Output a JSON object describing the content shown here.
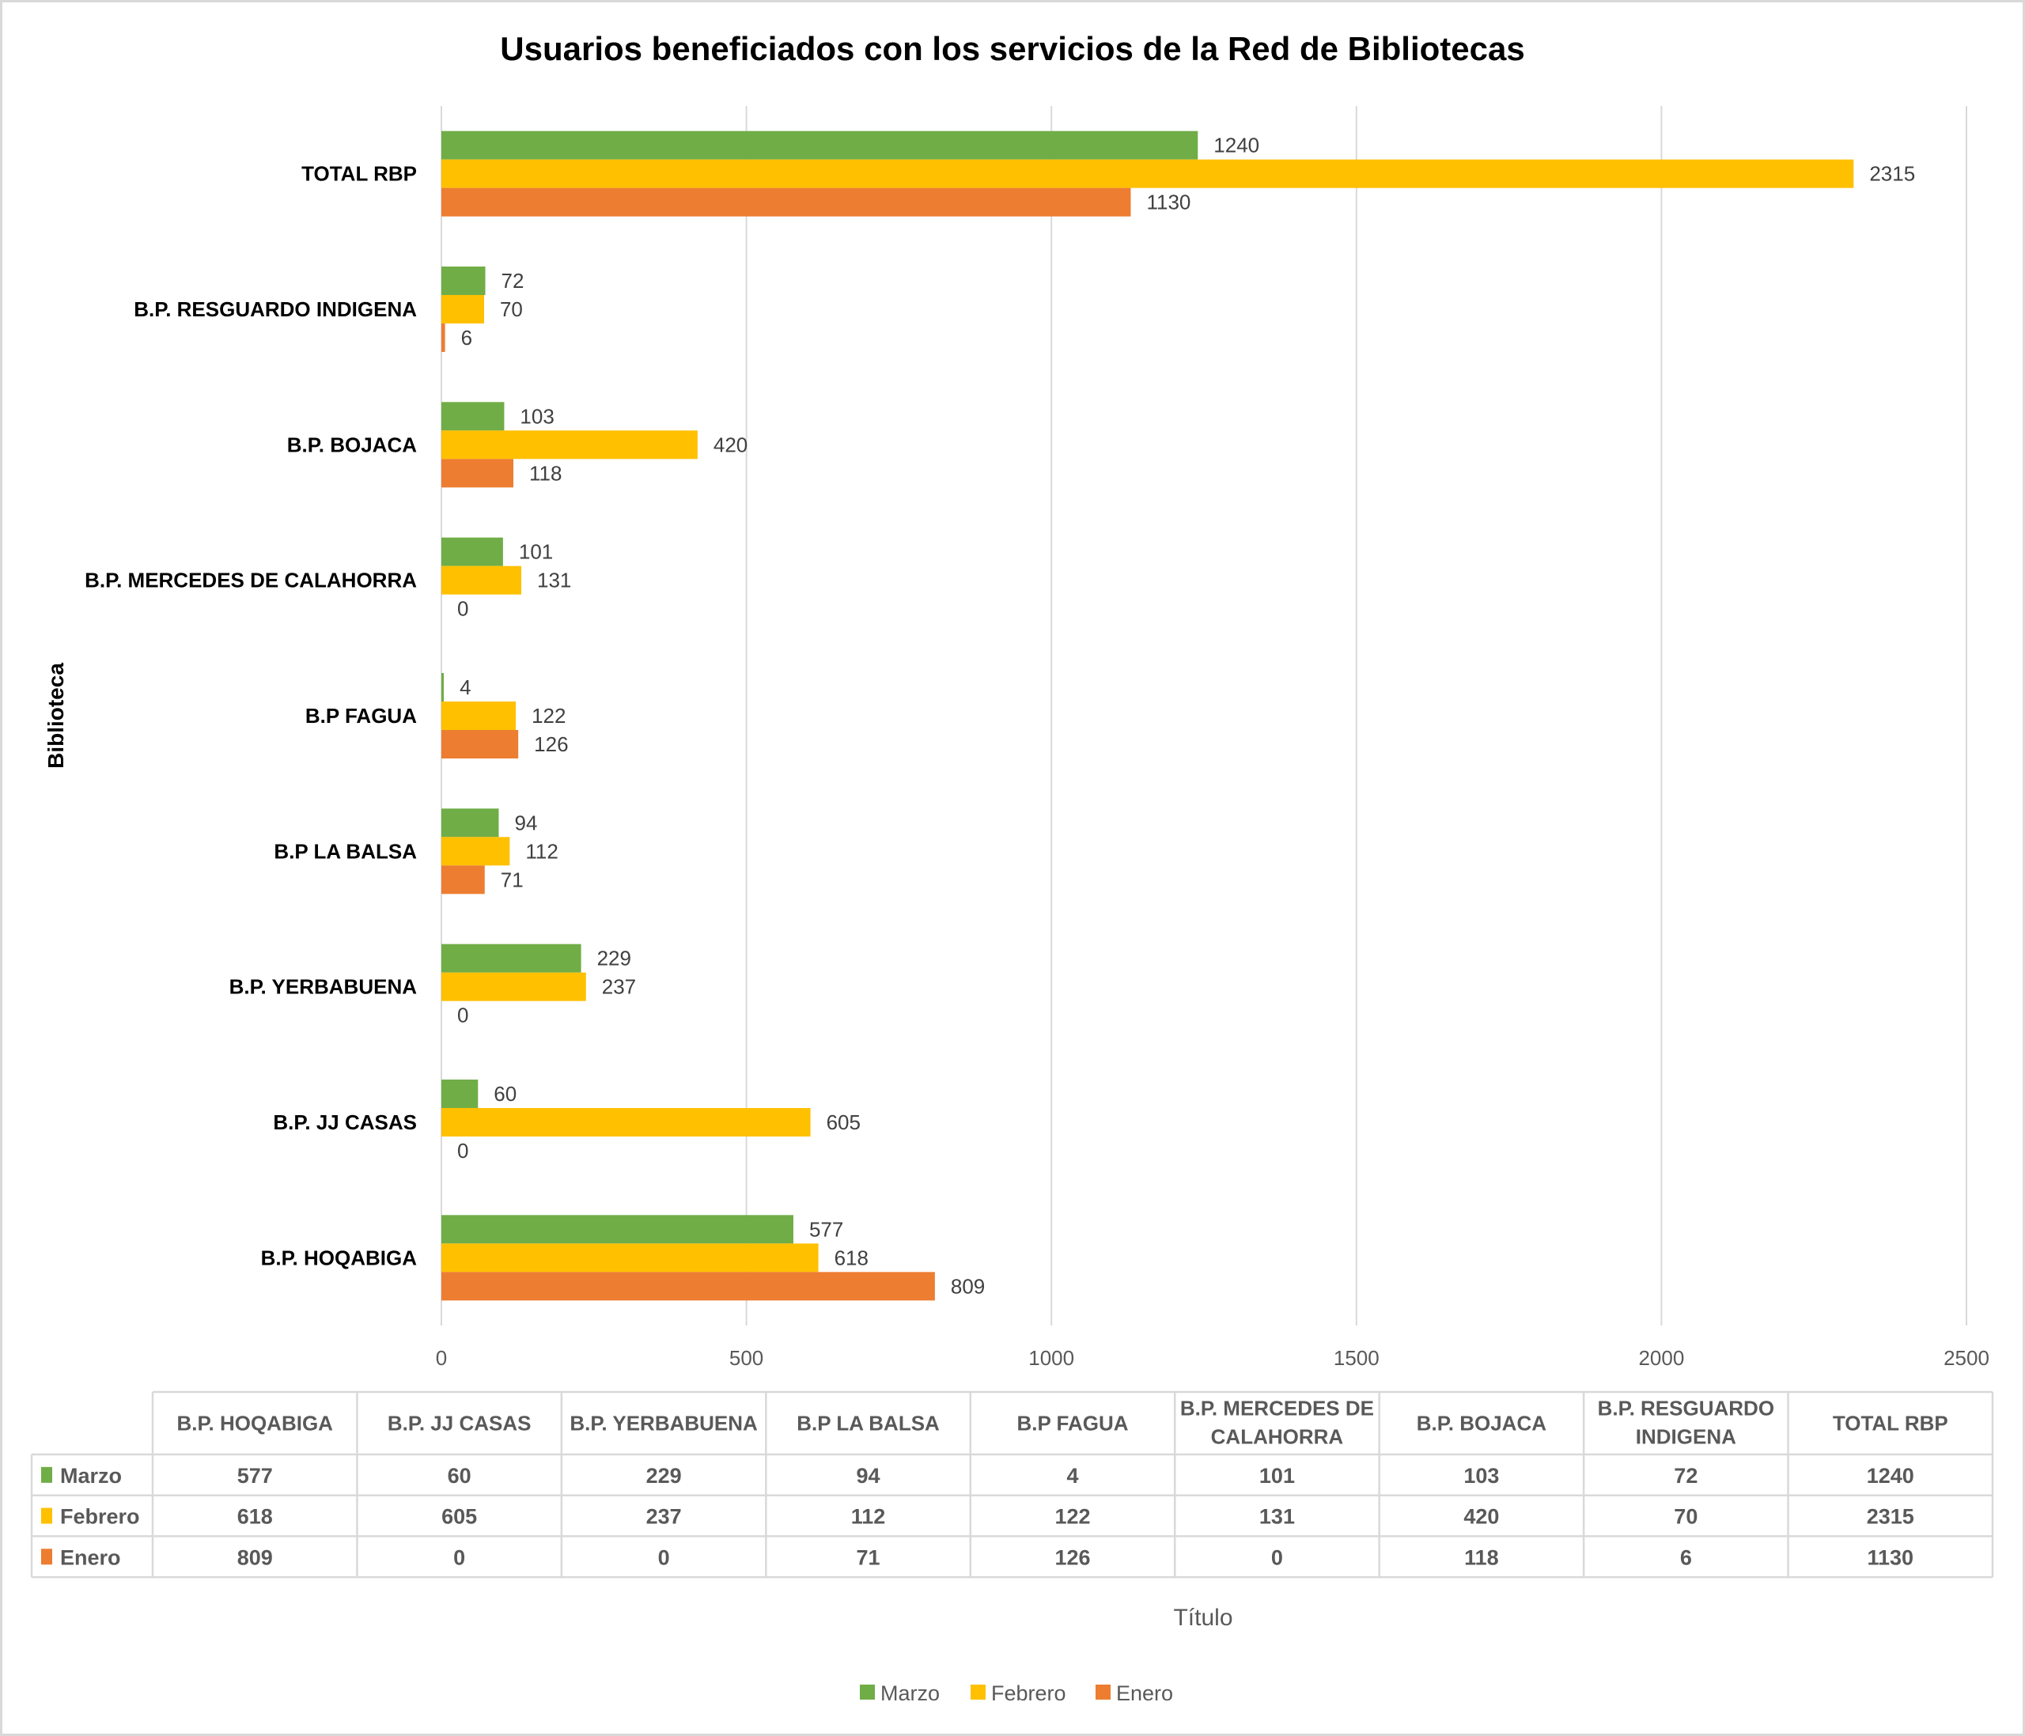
{
  "chart_data": {
    "type": "bar",
    "orientation": "horizontal",
    "title": "Usuarios beneficiados con los servicios de la Red de Bibliotecas",
    "ylabel": "Biblioteca",
    "xlabel": "Título",
    "xlim": [
      0,
      2500
    ],
    "xticks": [
      0,
      500,
      1000,
      1500,
      2000,
      2500
    ],
    "grid": true,
    "legend_position": "bottom",
    "categories": [
      "B.P.  HOQABIGA",
      "B.P. JJ CASAS",
      "B.P. YERBABUENA",
      "B.P LA BALSA",
      "B.P FAGUA",
      "B.P. MERCEDES DE CALAHORRA",
      "B.P.  BOJACA",
      "B.P. RESGUARDO INDIGENA",
      "TOTAL RBP"
    ],
    "table_headers": [
      "B.P.  HOQABIGA",
      "B.P. JJ CASAS",
      "B.P. YERBABUENA",
      "B.P LA BALSA",
      "B.P FAGUA",
      "B.P. MERCEDES DE CALAHORRA",
      "B.P.  BOJACA",
      "B.P. RESGUARDO INDIGENA",
      "TOTAL RBP"
    ],
    "series": [
      {
        "name": "Marzo",
        "color": "#70ad47",
        "values": [
          577,
          60,
          229,
          94,
          4,
          101,
          103,
          72,
          1240
        ]
      },
      {
        "name": "Febrero",
        "color": "#ffc000",
        "values": [
          618,
          605,
          237,
          112,
          122,
          131,
          420,
          70,
          2315
        ]
      },
      {
        "name": "Enero",
        "color": "#ed7d31",
        "values": [
          809,
          0,
          0,
          71,
          126,
          0,
          118,
          6,
          1130
        ]
      }
    ],
    "data_table": true
  }
}
